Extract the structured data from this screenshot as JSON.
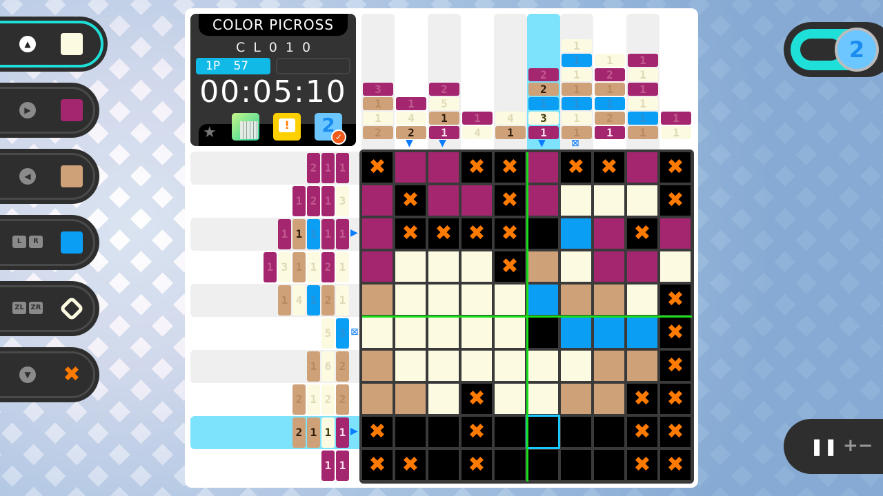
{
  "colors": {
    "cream": "#fdfae2",
    "magenta": "#a3266f",
    "tan": "#cfa179",
    "blue": "#0b9ef5",
    "cross": "#ff7a00",
    "empty": "#000000",
    "highlight": "#7de3fd",
    "guide": "#18e018"
  },
  "palette": [
    {
      "key": "triangle-up",
      "swatch": "cream",
      "selected": true
    },
    {
      "key": "triangle-right",
      "swatch": "magenta"
    },
    {
      "key": "triangle-left",
      "swatch": "tan"
    },
    {
      "key": "L R",
      "swatch": "blue"
    },
    {
      "key": "ZL ZR",
      "swatch": "eraser"
    },
    {
      "key": "triangle-down",
      "swatch": "cross"
    }
  ],
  "info": {
    "title": "COLOR PICROSS",
    "level": "CL010",
    "player": "1P",
    "score": "57",
    "time": "00:05:10",
    "icons": [
      "star-icon",
      "preview-grid-icon",
      "hint-icon",
      "progress-badge-icon"
    ]
  },
  "hud": {
    "toggle_label": "2",
    "pause_label": "❚❚",
    "zoom_label": "+−"
  },
  "highlight": {
    "row": 9,
    "col": 6
  },
  "col_clues": [
    [
      {
        "n": 3,
        "c": "m",
        "d": 1
      },
      {
        "n": 1,
        "c": "t",
        "d": 1
      },
      {
        "n": 1,
        "c": "c",
        "d": 1
      },
      {
        "n": 2,
        "c": "t",
        "d": 1
      }
    ],
    [
      {
        "n": 1,
        "c": "m",
        "d": 1
      },
      {
        "n": 4,
        "c": "c",
        "d": 1
      },
      {
        "n": 2,
        "c": "t",
        "d": 0
      }
    ],
    [
      {
        "n": 2,
        "c": "m",
        "d": 1
      },
      {
        "n": 5,
        "c": "c",
        "d": 1
      },
      {
        "n": 1,
        "c": "t",
        "d": 0
      },
      {
        "n": 1,
        "c": "m",
        "d": 0
      }
    ],
    [
      {
        "n": 1,
        "c": "m",
        "d": 1
      },
      {
        "n": 4,
        "c": "c",
        "d": 1
      }
    ],
    [
      {
        "n": 4,
        "c": "c",
        "d": 1
      },
      {
        "n": 1,
        "c": "t",
        "d": 0
      }
    ],
    [
      {
        "n": 2,
        "c": "m",
        "d": 1
      },
      {
        "n": 2,
        "c": "t",
        "d": 0
      },
      {
        "n": 1,
        "c": "b",
        "d": 1
      },
      {
        "n": 3,
        "c": "c",
        "d": 0
      },
      {
        "n": 1,
        "c": "m",
        "d": 0
      }
    ],
    [
      {
        "n": 1,
        "c": "c",
        "d": 1
      },
      {
        "n": 1,
        "c": "b",
        "d": 1
      },
      {
        "n": 1,
        "c": "c",
        "d": 1
      },
      {
        "n": 1,
        "c": "t",
        "d": 1
      },
      {
        "n": 1,
        "c": "b",
        "d": 1
      },
      {
        "n": 1,
        "c": "c",
        "d": 1
      },
      {
        "n": 1,
        "c": "t",
        "d": 1
      }
    ],
    [
      {
        "n": 1,
        "c": "c",
        "d": 1
      },
      {
        "n": 2,
        "c": "m",
        "d": 1
      },
      {
        "n": 1,
        "c": "t",
        "d": 1
      },
      {
        "n": 1,
        "c": "b",
        "d": 1
      },
      {
        "n": 2,
        "c": "t",
        "d": 1
      },
      {
        "n": 1,
        "c": "m",
        "d": 0
      }
    ],
    [
      {
        "n": 1,
        "c": "m",
        "d": 1
      },
      {
        "n": 1,
        "c": "c",
        "d": 1
      },
      {
        "n": 1,
        "c": "m",
        "d": 1
      },
      {
        "n": 1,
        "c": "c",
        "d": 1
      },
      {
        "n": 1,
        "c": "b",
        "d": 1
      },
      {
        "n": 1,
        "c": "t",
        "d": 1
      }
    ],
    [
      {
        "n": 1,
        "c": "m",
        "d": 1
      },
      {
        "n": 1,
        "c": "c",
        "d": 1
      }
    ]
  ],
  "row_clues": [
    [
      {
        "n": 2,
        "c": "m",
        "d": 1
      },
      {
        "n": 1,
        "c": "m",
        "d": 1
      },
      {
        "n": 1,
        "c": "m",
        "d": 1
      }
    ],
    [
      {
        "n": 1,
        "c": "m",
        "d": 1
      },
      {
        "n": 2,
        "c": "m",
        "d": 1
      },
      {
        "n": 1,
        "c": "m",
        "d": 1
      },
      {
        "n": 3,
        "c": "c",
        "d": 1
      }
    ],
    [
      {
        "n": 1,
        "c": "m",
        "d": 1
      },
      {
        "n": 1,
        "c": "t",
        "d": 0
      },
      {
        "n": 1,
        "c": "b",
        "d": 1
      },
      {
        "n": 1,
        "c": "m",
        "d": 1
      },
      {
        "n": 1,
        "c": "m",
        "d": 1
      }
    ],
    [
      {
        "n": 1,
        "c": "m",
        "d": 1
      },
      {
        "n": 3,
        "c": "c",
        "d": 1
      },
      {
        "n": 1,
        "c": "t",
        "d": 1
      },
      {
        "n": 1,
        "c": "c",
        "d": 1
      },
      {
        "n": 2,
        "c": "m",
        "d": 1
      },
      {
        "n": 1,
        "c": "c",
        "d": 1
      }
    ],
    [
      {
        "n": 1,
        "c": "t",
        "d": 1
      },
      {
        "n": 4,
        "c": "c",
        "d": 1
      },
      {
        "n": 1,
        "c": "b",
        "d": 1
      },
      {
        "n": 2,
        "c": "t",
        "d": 1
      },
      {
        "n": 1,
        "c": "c",
        "d": 1
      }
    ],
    [
      {
        "n": 5,
        "c": "c",
        "d": 1
      },
      {
        "n": 3,
        "c": "b",
        "d": 1
      }
    ],
    [
      {
        "n": 1,
        "c": "t",
        "d": 1
      },
      {
        "n": 6,
        "c": "c",
        "d": 1
      },
      {
        "n": 2,
        "c": "t",
        "d": 1
      }
    ],
    [
      {
        "n": 2,
        "c": "t",
        "d": 1
      },
      {
        "n": 1,
        "c": "c",
        "d": 1
      },
      {
        "n": 2,
        "c": "c",
        "d": 1
      },
      {
        "n": 2,
        "c": "t",
        "d": 1
      }
    ],
    [
      {
        "n": 2,
        "c": "t",
        "d": 0
      },
      {
        "n": 1,
        "c": "t",
        "d": 0
      },
      {
        "n": 1,
        "c": "c",
        "d": 0
      },
      {
        "n": 1,
        "c": "m",
        "d": 0
      }
    ],
    [
      {
        "n": 1,
        "c": "m",
        "d": 0
      },
      {
        "n": 1,
        "c": "m",
        "d": 0
      }
    ]
  ],
  "col_markers": [
    {
      "col": 2,
      "type": "arrow"
    },
    {
      "col": 3,
      "type": "arrow"
    },
    {
      "col": 6,
      "type": "arrow"
    },
    {
      "col": 7,
      "type": "arrow-x"
    }
  ],
  "row_markers": [
    {
      "row": 3,
      "type": "arrow"
    },
    {
      "row": 6,
      "type": "arrow-x"
    },
    {
      "row": 9,
      "type": "arrow"
    }
  ],
  "grid": [
    "XMMXXMXXMX",
    "MXMMXMCCCX",
    "MXXXXKBMXM",
    "MCCCXTCMMC",
    "TCCCCBTTCX",
    "CCCCCKBBBX",
    "TCCCCCCTTX",
    "TTCXCCTTXX",
    "XKKXKKKKXX",
    "XXKXKKKKXX"
  ]
}
